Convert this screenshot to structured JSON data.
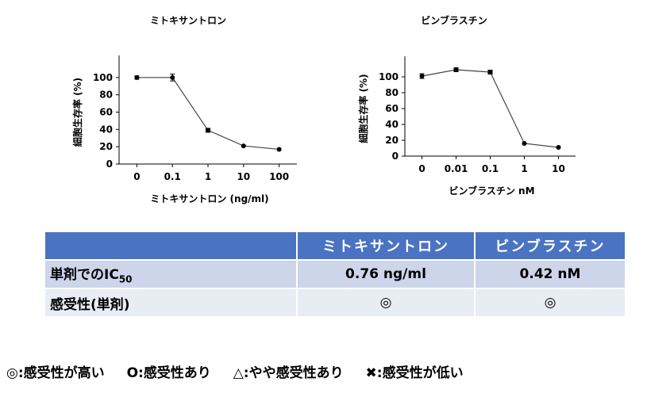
{
  "chart_data": [
    {
      "type": "line",
      "title": "ミトキサントロン",
      "xlabel": "ミトキサントロン (ng/ml)",
      "ylabel": "細胞生存率 (%)",
      "categories": [
        "0",
        "0.1",
        "1",
        "10",
        "100"
      ],
      "yticks": [
        "0",
        "20",
        "40",
        "60",
        "80",
        "100"
      ],
      "ylim": [
        0,
        120
      ],
      "values": [
        100,
        100,
        39,
        21,
        17
      ],
      "errors": [
        2,
        4,
        0,
        0,
        0
      ],
      "markers": [
        "circle",
        "circle",
        "square",
        "circle",
        "circle"
      ]
    },
    {
      "type": "line",
      "title": "ビンブラスチン",
      "xlabel": "ビンブラスチン nM",
      "ylabel": "細胞生存率 (%)",
      "categories": [
        "0",
        "0.01",
        "0.1",
        "1",
        "10"
      ],
      "yticks": [
        "0",
        "20",
        "40",
        "60",
        "80",
        "100"
      ],
      "ylim": [
        0,
        120
      ],
      "values": [
        101,
        109,
        106,
        16,
        11
      ],
      "errors": [
        3,
        0,
        0,
        0,
        0
      ],
      "markers": [
        "circle",
        "square",
        "square",
        "circle",
        "circle"
      ]
    }
  ],
  "table": {
    "headers": [
      "",
      "ミトキサントロン",
      "ビンブラスチン"
    ],
    "rows": [
      {
        "label": "単剤でのIC",
        "label_sub": "50",
        "values": [
          "0.76 ng/ml",
          "0.42 nM"
        ]
      },
      {
        "label": "感受性(単剤)",
        "values": [
          "◎",
          "◎"
        ]
      }
    ]
  },
  "legend": {
    "items": [
      "◎:感受性が高い",
      "O:感受性あり",
      "△:やや感受性あり",
      "✖:感受性が低い"
    ]
  }
}
